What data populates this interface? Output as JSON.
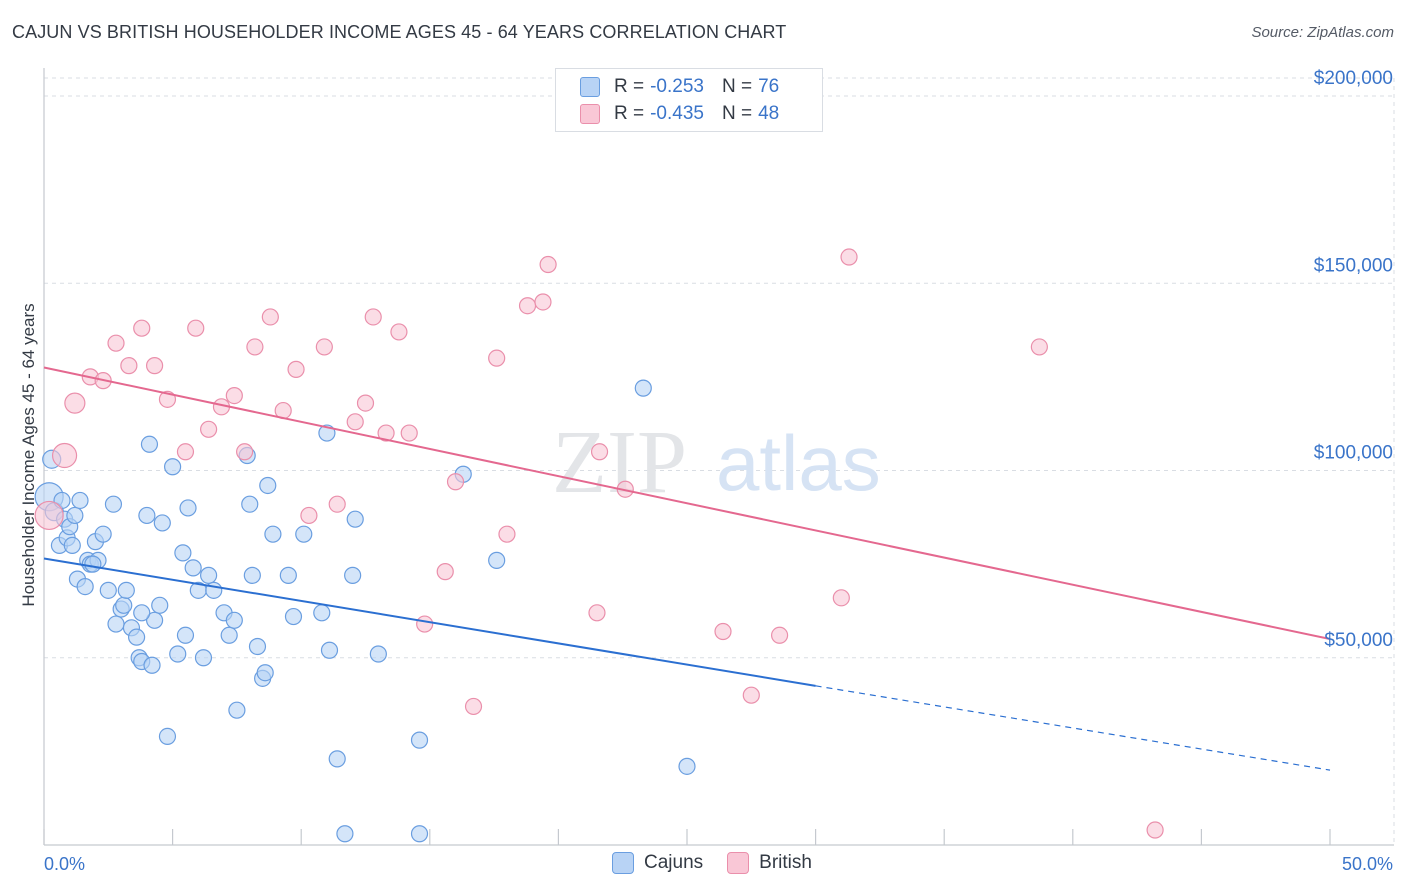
{
  "title": "CAJUN VS BRITISH HOUSEHOLDER INCOME AGES 45 - 64 YEARS CORRELATION CHART",
  "source": "Source: ZipAtlas.com",
  "watermark": {
    "zip": "ZIP",
    "atlas": "atlas"
  },
  "legend": {
    "cajuns": {
      "r_label": "R =",
      "r_value": "-0.253",
      "n_label": "N =",
      "n_value": "76"
    },
    "british": {
      "r_label": "R =",
      "r_value": "-0.435",
      "n_label": "N =",
      "n_value": "48"
    }
  },
  "bottom_legend": {
    "cajuns": "Cajuns",
    "british": "British"
  },
  "colors": {
    "cajuns_fill": "#b8d3f5",
    "cajuns_stroke": "#6a9ee0",
    "cajuns_line": "#2b6fd1",
    "british_fill": "#f9c7d6",
    "british_stroke": "#ea8fab",
    "british_line": "#e4688f",
    "accent_text": "#3a74c9",
    "grid": "#d9dde3"
  },
  "chart_data": {
    "type": "scatter",
    "title": "CAJUN VS BRITISH HOUSEHOLDER INCOME AGES 45 - 64 YEARS CORRELATION CHART",
    "xlabel": "",
    "ylabel": "Householder Income Ages 45 - 64 years",
    "xlim": [
      0,
      50
    ],
    "ylim": [
      0,
      210000
    ],
    "x_tick_labels": [
      "0.0%",
      "50.0%"
    ],
    "y_ticks": [
      50000,
      100000,
      150000,
      200000
    ],
    "y_tick_labels": [
      "$50,000",
      "$100,000",
      "$150,000",
      "$200,000"
    ],
    "grid": true,
    "legend_position": "top-center",
    "series": [
      {
        "name": "Cajuns",
        "r": -0.253,
        "n": 76,
        "trend": {
          "x0": 0,
          "y0": 76500,
          "x1": 30,
          "y1": 42500,
          "dash_to_x": 50,
          "dash_to_y": 20000
        },
        "points": [
          [
            0.2,
            93000,
            14
          ],
          [
            0.3,
            103000,
            9
          ],
          [
            0.4,
            89000,
            9
          ],
          [
            0.6,
            80000,
            8
          ],
          [
            0.7,
            92000,
            8
          ],
          [
            0.8,
            87000,
            8
          ],
          [
            0.9,
            82000,
            8
          ],
          [
            1.0,
            85000,
            8
          ],
          [
            1.1,
            80000,
            8
          ],
          [
            1.2,
            88000,
            8
          ],
          [
            1.3,
            71000,
            8
          ],
          [
            1.4,
            92000,
            8
          ],
          [
            1.6,
            69000,
            8
          ],
          [
            1.7,
            76000,
            8
          ],
          [
            1.8,
            75000,
            8
          ],
          [
            2.0,
            81000,
            8
          ],
          [
            2.1,
            76000,
            8
          ],
          [
            2.3,
            83000,
            8
          ],
          [
            2.5,
            68000,
            8
          ],
          [
            2.7,
            91000,
            8
          ],
          [
            2.8,
            59000,
            8
          ],
          [
            3.0,
            63000,
            8
          ],
          [
            3.1,
            64000,
            8
          ],
          [
            3.2,
            68000,
            8
          ],
          [
            3.4,
            58000,
            8
          ],
          [
            3.6,
            55500,
            8
          ],
          [
            3.7,
            50000,
            8
          ],
          [
            3.8,
            49000,
            8
          ],
          [
            4.0,
            88000,
            8
          ],
          [
            4.1,
            107000,
            8
          ],
          [
            4.2,
            48000,
            8
          ],
          [
            4.3,
            60000,
            8
          ],
          [
            4.5,
            64000,
            8
          ],
          [
            4.6,
            86000,
            8
          ],
          [
            4.8,
            29000,
            8
          ],
          [
            5.0,
            101000,
            8
          ],
          [
            5.2,
            51000,
            8
          ],
          [
            5.4,
            78000,
            8
          ],
          [
            5.5,
            56000,
            8
          ],
          [
            5.6,
            90000,
            8
          ],
          [
            5.8,
            74000,
            8
          ],
          [
            6.0,
            68000,
            8
          ],
          [
            6.2,
            50000,
            8
          ],
          [
            6.4,
            72000,
            8
          ],
          [
            6.6,
            68000,
            8
          ],
          [
            7.0,
            62000,
            8
          ],
          [
            7.2,
            56000,
            8
          ],
          [
            7.4,
            60000,
            8
          ],
          [
            7.5,
            36000,
            8
          ],
          [
            7.9,
            104000,
            8
          ],
          [
            8.0,
            91000,
            8
          ],
          [
            8.1,
            72000,
            8
          ],
          [
            8.3,
            53000,
            8
          ],
          [
            8.5,
            44500,
            8
          ],
          [
            8.6,
            46000,
            8
          ],
          [
            8.7,
            96000,
            8
          ],
          [
            8.9,
            83000,
            8
          ],
          [
            9.5,
            72000,
            8
          ],
          [
            9.7,
            61000,
            8
          ],
          [
            10.1,
            83000,
            8
          ],
          [
            10.8,
            62000,
            8
          ],
          [
            11.0,
            110000,
            8
          ],
          [
            11.1,
            52000,
            8
          ],
          [
            11.4,
            23000,
            8
          ],
          [
            11.7,
            3000,
            8
          ],
          [
            12.0,
            72000,
            8
          ],
          [
            12.1,
            87000,
            8
          ],
          [
            13.0,
            51000,
            8
          ],
          [
            14.6,
            28000,
            8
          ],
          [
            14.6,
            3000,
            8
          ],
          [
            16.3,
            99000,
            8
          ],
          [
            17.6,
            76000,
            8
          ],
          [
            23.3,
            122000,
            8
          ],
          [
            25.0,
            21000,
            8
          ],
          [
            3.8,
            62000,
            8
          ],
          [
            1.9,
            75000,
            8
          ]
        ]
      },
      {
        "name": "British",
        "r": -0.435,
        "n": 48,
        "trend": {
          "x0": 0,
          "y0": 127500,
          "x1": 50,
          "y1": 55000
        },
        "points": [
          [
            0.2,
            88000,
            14
          ],
          [
            0.8,
            104000,
            12
          ],
          [
            1.2,
            118000,
            10
          ],
          [
            1.8,
            125000,
            8
          ],
          [
            2.3,
            124000,
            8
          ],
          [
            2.8,
            134000,
            8
          ],
          [
            3.3,
            128000,
            8
          ],
          [
            3.8,
            138000,
            8
          ],
          [
            4.3,
            128000,
            8
          ],
          [
            4.8,
            119000,
            8
          ],
          [
            5.5,
            105000,
            8
          ],
          [
            5.9,
            138000,
            8
          ],
          [
            6.4,
            111000,
            8
          ],
          [
            6.9,
            117000,
            8
          ],
          [
            7.4,
            120000,
            8
          ],
          [
            7.8,
            105000,
            8
          ],
          [
            8.2,
            133000,
            8
          ],
          [
            8.8,
            141000,
            8
          ],
          [
            9.3,
            116000,
            8
          ],
          [
            9.8,
            127000,
            8
          ],
          [
            10.3,
            88000,
            8
          ],
          [
            10.9,
            133000,
            8
          ],
          [
            11.4,
            91000,
            8
          ],
          [
            12.1,
            113000,
            8
          ],
          [
            12.5,
            118000,
            8
          ],
          [
            12.8,
            141000,
            8
          ],
          [
            13.3,
            110000,
            8
          ],
          [
            13.8,
            137000,
            8
          ],
          [
            14.2,
            110000,
            8
          ],
          [
            14.8,
            59000,
            8
          ],
          [
            15.6,
            73000,
            8
          ],
          [
            16.0,
            97000,
            8
          ],
          [
            16.7,
            37000,
            8
          ],
          [
            17.6,
            130000,
            8
          ],
          [
            18.0,
            83000,
            8
          ],
          [
            18.8,
            144000,
            8
          ],
          [
            19.4,
            145000,
            8
          ],
          [
            19.6,
            155000,
            8
          ],
          [
            21.5,
            62000,
            8
          ],
          [
            21.6,
            105000,
            8
          ],
          [
            22.6,
            95000,
            8
          ],
          [
            26.4,
            57000,
            8
          ],
          [
            27.5,
            40000,
            8
          ],
          [
            28.6,
            56000,
            8
          ],
          [
            31.0,
            66000,
            8
          ],
          [
            31.3,
            157000,
            8
          ],
          [
            38.7,
            133000,
            8
          ],
          [
            43.2,
            4000,
            8
          ]
        ]
      }
    ]
  }
}
